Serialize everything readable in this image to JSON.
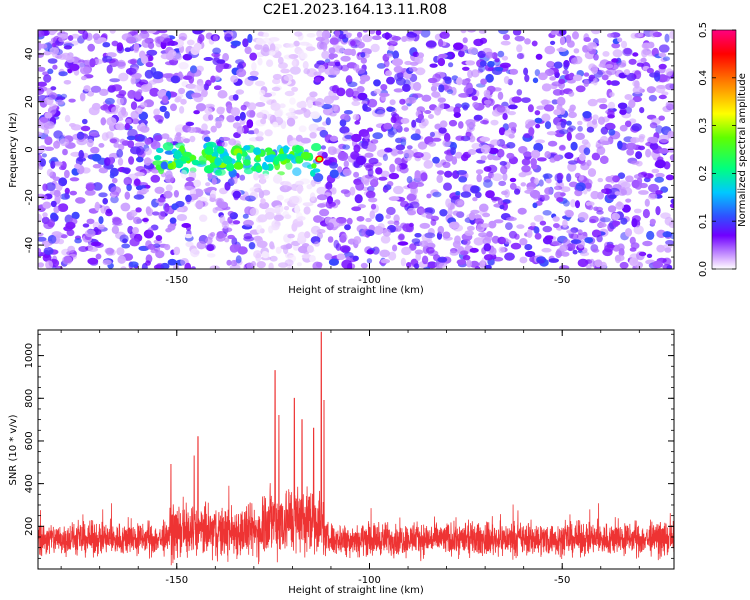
{
  "title": "C2E1.2023.164.13.11.R08",
  "chart_data": [
    {
      "type": "heatmap",
      "xlabel": "Height of straight line (km)",
      "ylabel": "Frequency (Hz)",
      "xlim": [
        -186,
        -21
      ],
      "ylim": [
        -50,
        50
      ],
      "xticks": [
        -150,
        -100,
        -50
      ],
      "xtick_labels": [
        "-150",
        "-100",
        "-50"
      ],
      "yticks": [
        40,
        20,
        0,
        -20,
        -40
      ],
      "ytick_labels": [
        "40",
        "20",
        "0",
        "-20",
        "-40"
      ],
      "colorbar": {
        "label": "Normalized spectral amplitude",
        "range": [
          0.0,
          0.5
        ],
        "ticks": [
          0.0,
          0.1,
          0.2,
          0.3,
          0.4,
          0.5
        ],
        "tick_labels": [
          "0.0",
          "0.1",
          "0.2",
          "0.3",
          "0.4",
          "0.5"
        ],
        "colors": [
          "#ffffff",
          "#e6c8ff",
          "#b070ff",
          "#7000ff",
          "#3050ff",
          "#00ffff",
          "#00ff00",
          "#ffff00",
          "#ff8000",
          "#ff0000",
          "#ff0080"
        ]
      },
      "signal_band": {
        "x_range": [
          -155,
          -113
        ],
        "freq_center": -4,
        "peak_height": -113,
        "peak_value": 0.45
      },
      "quiet_band": {
        "x_range": [
          -130,
          -114
        ]
      }
    },
    {
      "type": "line",
      "xlabel": "Height of straight line (km)",
      "ylabel": "SNR (10 * v/v)",
      "xlim": [
        -186,
        -21
      ],
      "ylim": [
        0,
        1120
      ],
      "xticks": [
        -150,
        -100,
        -50
      ],
      "xtick_labels": [
        "-150",
        "-100",
        "-50"
      ],
      "yticks": [
        200,
        400,
        600,
        800,
        1000
      ],
      "ytick_labels": [
        "200",
        "400",
        "600",
        "800",
        "1000"
      ],
      "color": "#ee3333",
      "baseline_mean": 140,
      "spikes": [
        {
          "x": -151.5,
          "y": 490
        },
        {
          "x": -145.5,
          "y": 530
        },
        {
          "x": -144.5,
          "y": 620
        },
        {
          "x": -124.5,
          "y": 930
        },
        {
          "x": -123.5,
          "y": 720
        },
        {
          "x": -119.5,
          "y": 800
        },
        {
          "x": -117.5,
          "y": 700
        },
        {
          "x": -114.5,
          "y": 660
        },
        {
          "x": -112.5,
          "y": 1110
        },
        {
          "x": -111.8,
          "y": 790
        }
      ]
    }
  ]
}
